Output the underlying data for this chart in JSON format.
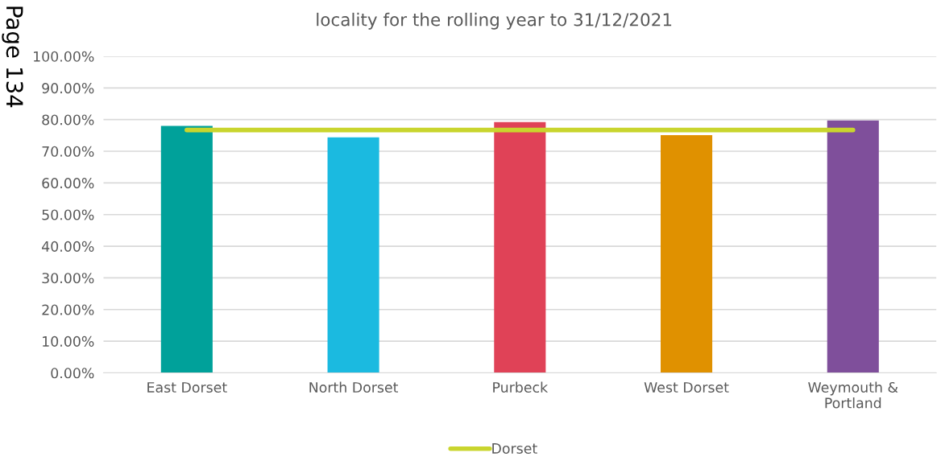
{
  "chart_data": {
    "type": "bar",
    "title": "locality for the rolling year to 31/12/2021",
    "categories": [
      "East Dorset",
      "North Dorset",
      "Purbeck",
      "West Dorset",
      "Weymouth &\nPortland"
    ],
    "series": [
      {
        "colors": [
          "#00a19a",
          "#1bbae0",
          "#e04257",
          "#e09100",
          "#7f4f9b"
        ],
        "values": [
          78.0,
          74.4,
          79.2,
          75.1,
          79.7
        ]
      },
      {
        "type": "line",
        "name": "Dorset",
        "color": "#c9d52e",
        "values": [
          76.7,
          76.7,
          76.7,
          76.7,
          76.7
        ]
      }
    ],
    "ylim": [
      0,
      100
    ],
    "yticks": [
      {
        "value": 0,
        "label": "0.00%"
      },
      {
        "value": 10,
        "label": "10.00%"
      },
      {
        "value": 20,
        "label": "20.00%"
      },
      {
        "value": 30,
        "label": "30.00%"
      },
      {
        "value": 40,
        "label": "40.00%"
      },
      {
        "value": 50,
        "label": "50.00%"
      },
      {
        "value": 60,
        "label": "60.00%"
      },
      {
        "value": 70,
        "label": "70.00%"
      },
      {
        "value": 80,
        "label": "80.00%"
      },
      {
        "value": 90,
        "label": "90.00%"
      },
      {
        "value": 100,
        "label": "100.00%"
      }
    ],
    "grid": "y",
    "legend": "bottom",
    "marker": "none",
    "line_style": "solid",
    "annotations": [
      "Page 134"
    ]
  }
}
